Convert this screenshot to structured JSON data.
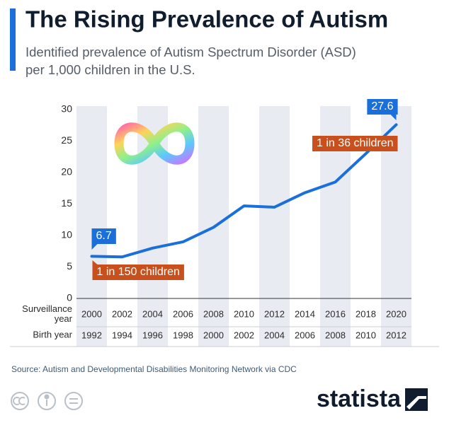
{
  "chart_data": {
    "type": "line",
    "title": "The Rising Prevalence of Autism",
    "subtitle": [
      "Identified prevalence of Autism Spectrum Disorder (ASD)",
      "per 1,000 children in the U.S."
    ],
    "x_label": "Surveillance year",
    "x2_label": "Birth year",
    "categories": [
      "2000",
      "2002",
      "2004",
      "2006",
      "2008",
      "2010",
      "2012",
      "2014",
      "2016",
      "2018",
      "2020"
    ],
    "birth_years": [
      "1992",
      "1994",
      "1996",
      "1998",
      "2000",
      "2002",
      "2004",
      "2006",
      "2008",
      "2010",
      "2012"
    ],
    "values": [
      6.7,
      6.6,
      8.0,
      9.0,
      11.3,
      14.7,
      14.5,
      16.8,
      18.5,
      23.0,
      27.6
    ],
    "color": "#1a6fdb",
    "data_labels": "ends",
    "annotations": [
      "1 in 150 children",
      "1 in 36 children"
    ],
    "annotation_color": "#c9501c",
    "ylim": [
      0,
      30
    ],
    "yticks": [
      0,
      5,
      10,
      15,
      20,
      25,
      30
    ],
    "grid": false,
    "source": "Source: Autism and Developmental Disabilities Monitoring Network via CDC",
    "brand": "statista"
  }
}
